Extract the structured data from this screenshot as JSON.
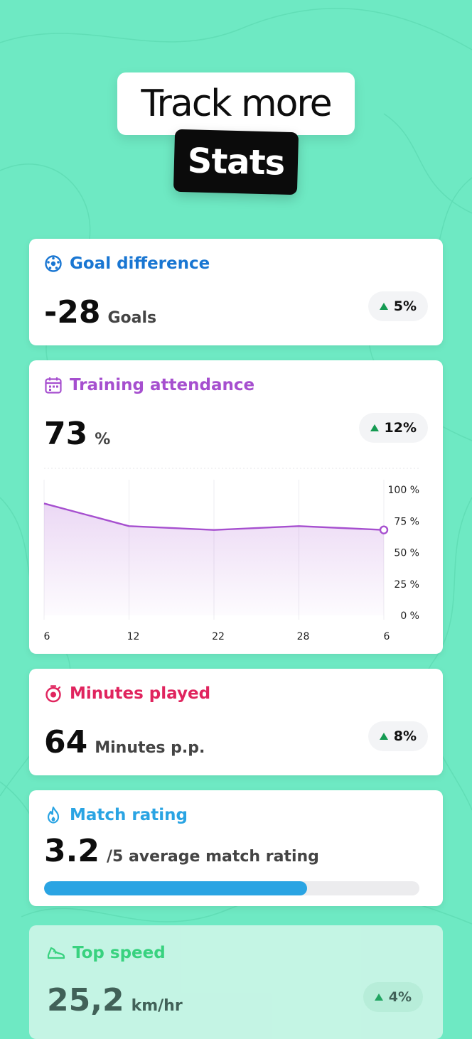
{
  "hero": {
    "line1": "Track more",
    "line2": "Stats"
  },
  "cards": {
    "goal_difference": {
      "title": "Goal difference",
      "value": "-28",
      "unit": "Goals",
      "change": "5%",
      "color": "#1976d2",
      "icon": "soccer-ball-icon"
    },
    "training_attendance": {
      "title": "Training attendance",
      "value": "73",
      "unit": "%",
      "change": "12%",
      "color": "#a64fcf",
      "icon": "calendar-icon"
    },
    "minutes_played": {
      "title": "Minutes played",
      "value": "64",
      "unit": "Minutes p.p.",
      "change": "8%",
      "color": "#e0245e",
      "icon": "stopwatch-icon"
    },
    "match_rating": {
      "title": "Match rating",
      "value": "3.2",
      "unit": "/5 average match rating",
      "rating_fraction": 0.7,
      "color": "#2aa4e3",
      "icon": "flame-icon"
    },
    "top_speed": {
      "title": "Top speed",
      "value": "25,2",
      "unit": "km/hr",
      "change": "4%",
      "color": "#2fcf74",
      "icon": "shoe-icon"
    }
  },
  "chart_data": {
    "type": "area",
    "x": [
      "6",
      "12",
      "22",
      "28",
      "6"
    ],
    "values": [
      89,
      71,
      68,
      71,
      68
    ],
    "y_ticks": [
      "0 %",
      "25 %",
      "50 %",
      "75 %",
      "100 %"
    ],
    "ylim": [
      0,
      100
    ],
    "grid": true,
    "line_color": "#a64fcf"
  }
}
